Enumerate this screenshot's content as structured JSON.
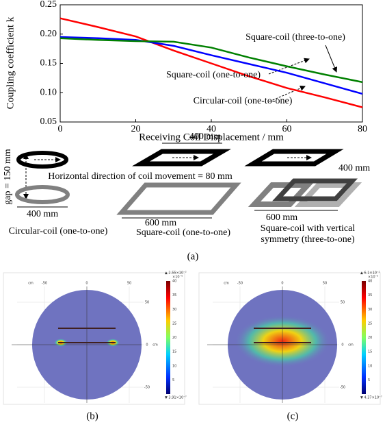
{
  "chart_data": {
    "type": "line",
    "x_label": "Receiving Coil Displacement / mm",
    "y_label": "Coupling coefficient k",
    "x": [
      0,
      10,
      20,
      30,
      40,
      50,
      60,
      70,
      80
    ],
    "series": [
      {
        "name": "Circular-coil (one-to-one)",
        "color": "#ff0000",
        "values": [
          0.227,
          0.212,
          0.196,
          0.172,
          0.15,
          0.128,
          0.108,
          0.092,
          0.075
        ]
      },
      {
        "name": "Square-coil (one-to-one)",
        "color": "#0000ff",
        "values": [
          0.195,
          0.193,
          0.19,
          0.18,
          0.164,
          0.149,
          0.134,
          0.116,
          0.098
        ]
      },
      {
        "name": "Square-coil (three-to-one)",
        "color": "#008000",
        "values": [
          0.193,
          0.19,
          0.188,
          0.187,
          0.177,
          0.16,
          0.145,
          0.131,
          0.118
        ]
      }
    ],
    "xlim": [
      0,
      80
    ],
    "xticks": [
      0,
      20,
      40,
      60,
      80
    ],
    "ylim": [
      0.05,
      0.25
    ],
    "yticks": [
      0.05,
      {
        "value": 0.1,
        "label": "0.10"
      },
      0.15,
      {
        "value": 0.2,
        "label": "0.20"
      },
      0.25
    ]
  },
  "diagram": {
    "gap_label": "gap = 150 mm",
    "movement_label": "Horizontal direction of coil movement = 80 mm",
    "coils": [
      {
        "size_labels": [
          "400 mm"
        ],
        "caption": [
          "Circular-coil (one-to-one)"
        ]
      },
      {
        "size_labels": [
          "400 mm",
          "600 mm"
        ],
        "caption": [
          "Square-coil (one-to-one)"
        ]
      },
      {
        "size_labels": [
          "400 mm",
          "600 mm"
        ],
        "caption": [
          "Square-coil with vertical",
          "symmetry (three-to-one)"
        ]
      }
    ]
  },
  "panel_labels": [
    "(a)",
    "(b)",
    "(c)"
  ],
  "simulations": [
    {
      "x_ticks": [
        -50,
        0,
        50
      ],
      "y_ticks": [
        50,
        0,
        -50
      ],
      "unit": "cm",
      "colorbar_ticks": [
        40,
        35,
        30,
        25,
        20,
        15,
        10,
        5
      ],
      "colorbar_scale": "×10⁻⁶",
      "max_label": "▲ 2.55×10⁻²",
      "min_label": "▼ 3.91×10⁻⁷"
    },
    {
      "x_ticks": [
        -50,
        0,
        50
      ],
      "y_ticks": [
        50,
        0,
        -50
      ],
      "unit": "cm",
      "colorbar_ticks": [
        40,
        35,
        30,
        25,
        20,
        15,
        10,
        5
      ],
      "colorbar_scale": "×10⁻⁶",
      "max_label": "▲ 6.1×10⁻²",
      "min_label": "▼ 4.37×10⁻⁷"
    }
  ]
}
